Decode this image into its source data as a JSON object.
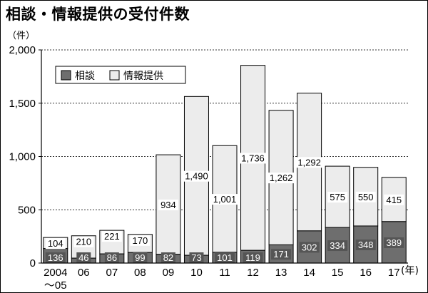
{
  "chart_data": {
    "type": "bar",
    "stacked": true,
    "title": "相談・情報提供の受付件数",
    "ylabel": "（件）",
    "xlabel": "(年)",
    "ylim": [
      0,
      2000
    ],
    "yticks": [
      "0",
      "500",
      "1,000",
      "1,500",
      "2,000"
    ],
    "ytick_values": [
      0,
      500,
      1000,
      1500,
      2000
    ],
    "grid": "dashed horizontal",
    "legend_position": "top-left",
    "categories": [
      "2004～05",
      "06",
      "07",
      "08",
      "09",
      "10",
      "11",
      "12",
      "13",
      "14",
      "15",
      "16",
      "17"
    ],
    "category_labels": [
      [
        "2004",
        "～05"
      ],
      [
        "06"
      ],
      [
        "07"
      ],
      [
        "08"
      ],
      [
        "09"
      ],
      [
        "10"
      ],
      [
        "11"
      ],
      [
        "12"
      ],
      [
        "13"
      ],
      [
        "14"
      ],
      [
        "15"
      ],
      [
        "16"
      ],
      [
        "17"
      ]
    ],
    "series": [
      {
        "name": "相談",
        "color": "#6e6e6e",
        "values": [
          136,
          46,
          86,
          99,
          82,
          73,
          101,
          119,
          171,
          302,
          334,
          348,
          389
        ],
        "labels": [
          "136",
          "46",
          "86",
          "99",
          "82",
          "73",
          "101",
          "119",
          "171",
          "302",
          "334",
          "348",
          "389"
        ]
      },
      {
        "name": "情報提供",
        "color": "#ececec",
        "values": [
          104,
          210,
          221,
          170,
          934,
          1490,
          1001,
          1736,
          1262,
          1292,
          575,
          550,
          415
        ],
        "labels": [
          "104",
          "210",
          "221",
          "170",
          "934",
          "1,490",
          "1,001",
          "1,736",
          "1,262",
          "1,292",
          "575",
          "550",
          "415"
        ]
      }
    ]
  }
}
